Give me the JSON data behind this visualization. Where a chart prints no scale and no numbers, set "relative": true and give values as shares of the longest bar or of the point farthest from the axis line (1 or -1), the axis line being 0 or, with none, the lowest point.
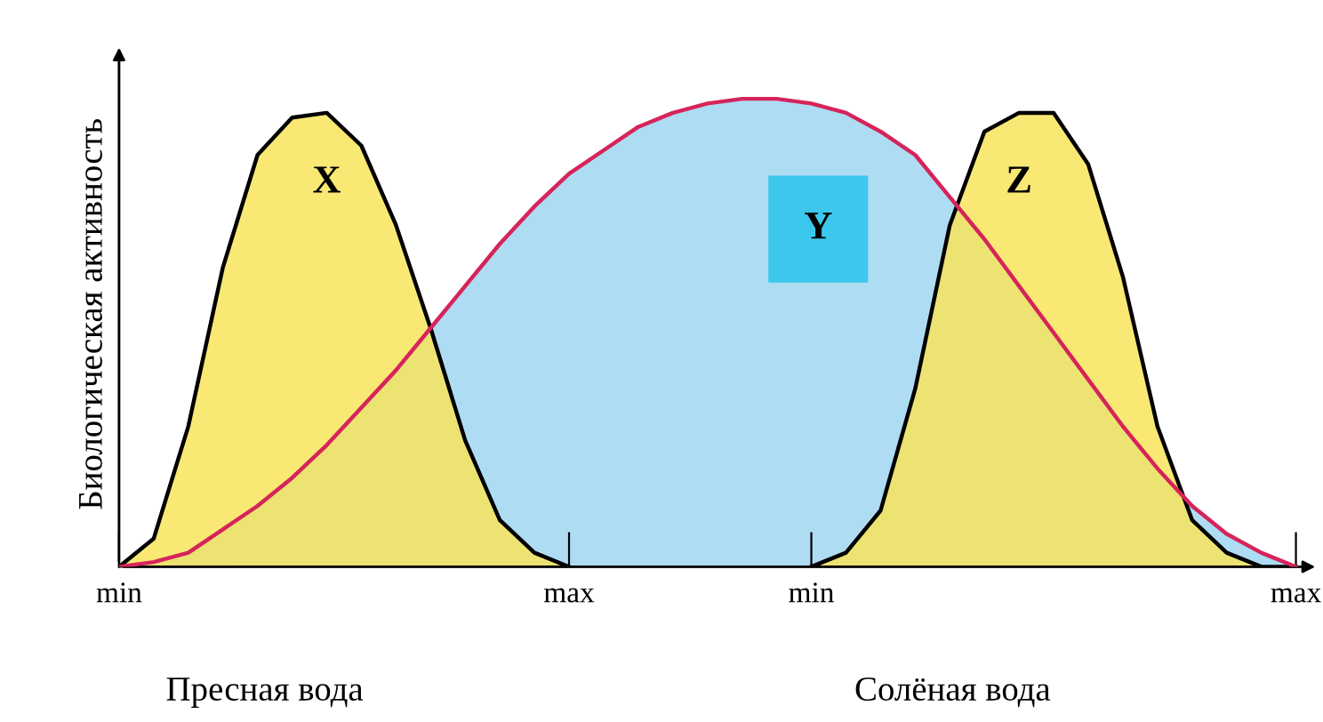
{
  "chart_data": {
    "type": "area",
    "relative": true,
    "ylabel": "Биологическая активность",
    "categories": [
      "min",
      null,
      null,
      null,
      null,
      null,
      null,
      null,
      null,
      null,
      null,
      null,
      null,
      "max",
      null,
      null,
      null,
      null,
      null,
      null,
      "min",
      null,
      null,
      null,
      null,
      null,
      null,
      null,
      null,
      null,
      null,
      null,
      null,
      null,
      "max"
    ],
    "series": [
      {
        "color": "#aedcf3",
        "values": [
          0,
          0.01,
          0.03,
          0.08,
          0.13,
          0.19,
          0.26,
          0.34,
          0.42,
          0.51,
          0.6,
          0.69,
          0.77,
          0.84,
          0.89,
          0.94,
          0.97,
          0.99,
          1,
          1,
          0.99,
          0.97,
          0.93,
          0.88,
          0.79,
          0.7,
          0.6,
          0.5,
          0.4,
          0.3,
          0.21,
          0.13,
          0.07,
          0.03,
          0
        ]
      },
      {
        "color": "#f8e45a",
        "values": [
          0,
          0.06,
          0.3,
          0.64,
          0.88,
          0.96,
          0.97,
          0.9,
          0.73,
          0.51,
          0.27,
          0.1,
          0.03,
          0,
          null,
          null,
          null,
          null,
          null,
          null,
          null,
          null,
          null,
          null,
          null,
          null,
          null,
          null,
          null,
          null,
          null,
          null,
          null,
          null,
          null
        ]
      },
      {
        "color": "#f8e45a",
        "values": [
          null,
          null,
          null,
          null,
          null,
          null,
          null,
          null,
          null,
          null,
          null,
          null,
          null,
          null,
          null,
          null,
          null,
          null,
          null,
          null,
          0,
          0.03,
          0.12,
          0.38,
          0.73,
          0.93,
          0.97,
          0.97,
          0.86,
          0.62,
          0.3,
          0.1,
          0.03,
          0,
          0
        ]
      }
    ],
    "annotations": [
      "X",
      "Y",
      "Z",
      "Пресная вода",
      "Солёная вода"
    ],
    "legend": false,
    "grid": false
  }
}
